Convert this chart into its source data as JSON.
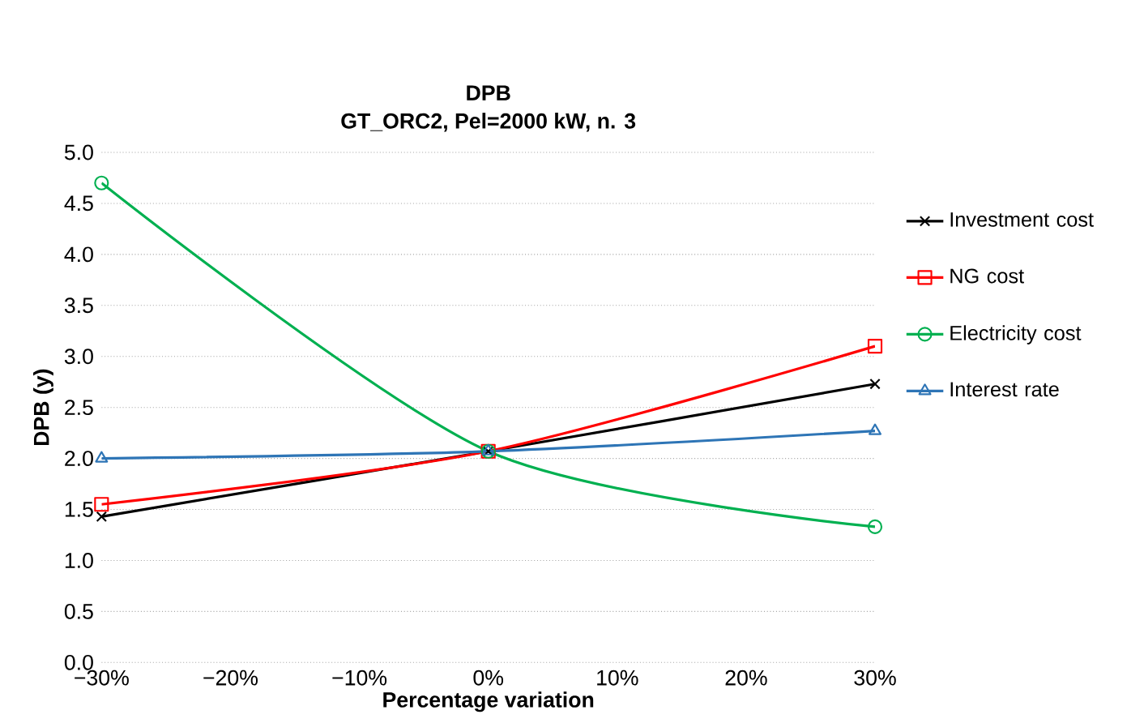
{
  "chart_data": {
    "type": "line",
    "title": "DPB",
    "subtitle": "GT_ORC2, Pel=2000 kW, n. 3",
    "xlabel": "Percentage variation",
    "ylabel": "DPB  (y)",
    "x": [
      -30,
      0,
      30
    ],
    "series": [
      {
        "name": "Investment cost",
        "color": "#000000",
        "marker": "cross",
        "values": [
          1.43,
          2.07,
          2.73
        ]
      },
      {
        "name": "NG cost",
        "color": "#ff0000",
        "marker": "square",
        "values": [
          1.55,
          2.07,
          3.1
        ]
      },
      {
        "name": "Electricity cost",
        "color": "#00b050",
        "marker": "circle",
        "values": [
          4.7,
          2.07,
          1.33
        ]
      },
      {
        "name": "Interest rate",
        "color": "#2e75b6",
        "marker": "triangle",
        "values": [
          2.0,
          2.07,
          2.27
        ]
      }
    ],
    "xlim": [
      -30,
      30
    ],
    "xticks": [
      {
        "value": -30,
        "label": "−30%"
      },
      {
        "value": -20,
        "label": "−20%"
      },
      {
        "value": -10,
        "label": "−10%"
      },
      {
        "value": 0,
        "label": "0%"
      },
      {
        "value": 10,
        "label": "10%"
      },
      {
        "value": 20,
        "label": "20%"
      },
      {
        "value": 30,
        "label": "30%"
      }
    ],
    "ylim": [
      0,
      5
    ],
    "yticks": [
      {
        "value": 0,
        "label": "0.0"
      },
      {
        "value": 0.5,
        "label": "0.5"
      },
      {
        "value": 1,
        "label": "1.0"
      },
      {
        "value": 1.5,
        "label": "1.5"
      },
      {
        "value": 2,
        "label": "2.0"
      },
      {
        "value": 2.5,
        "label": "2.5"
      },
      {
        "value": 3,
        "label": "3.0"
      },
      {
        "value": 3.5,
        "label": "3.5"
      },
      {
        "value": 4,
        "label": "4.0"
      },
      {
        "value": 4.5,
        "label": "4.5"
      },
      {
        "value": 5,
        "label": "5.0"
      }
    ],
    "grid": "y",
    "legend": "right",
    "line_style": "solid"
  }
}
